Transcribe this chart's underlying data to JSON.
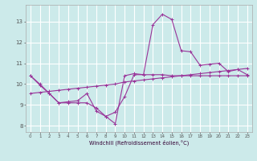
{
  "xlabel": "Windchill (Refroidissement éolien,°C)",
  "background_color": "#cceaea",
  "grid_color": "#ffffff",
  "line_color": "#993399",
  "xlim": [
    -0.5,
    23.5
  ],
  "ylim": [
    7.7,
    13.8
  ],
  "yticks": [
    8,
    9,
    10,
    11,
    12,
    13
  ],
  "xticks": [
    0,
    1,
    2,
    3,
    4,
    5,
    6,
    7,
    8,
    9,
    10,
    11,
    12,
    13,
    14,
    15,
    16,
    17,
    18,
    19,
    20,
    21,
    22,
    23
  ],
  "series1_x": [
    0,
    1,
    2,
    3,
    4,
    5,
    6,
    7,
    8,
    9,
    10,
    11,
    12,
    13,
    14,
    15,
    16,
    17,
    18,
    19,
    20,
    21,
    22,
    23
  ],
  "series1_y": [
    10.4,
    10.0,
    9.55,
    9.1,
    9.1,
    9.1,
    9.1,
    8.85,
    8.45,
    8.1,
    10.4,
    10.5,
    10.45,
    12.85,
    13.35,
    13.1,
    11.6,
    11.55,
    10.9,
    10.95,
    11.0,
    10.6,
    10.7,
    10.45
  ],
  "series2_x": [
    0,
    1,
    2,
    3,
    4,
    5,
    6,
    7,
    8,
    9,
    10,
    11,
    12,
    13,
    14,
    15,
    16,
    17,
    18,
    19,
    20,
    21,
    22,
    23
  ],
  "series2_y": [
    9.55,
    9.6,
    9.65,
    9.7,
    9.75,
    9.8,
    9.85,
    9.9,
    9.95,
    10.0,
    10.1,
    10.15,
    10.2,
    10.25,
    10.3,
    10.35,
    10.4,
    10.45,
    10.5,
    10.55,
    10.6,
    10.65,
    10.7,
    10.75
  ],
  "series3_x": [
    0,
    1,
    2,
    3,
    4,
    5,
    6,
    7,
    8,
    9,
    10,
    11,
    12,
    13,
    14,
    15,
    16,
    17,
    18,
    19,
    20,
    21,
    22,
    23
  ],
  "series3_y": [
    10.4,
    9.95,
    9.55,
    9.1,
    9.15,
    9.2,
    9.55,
    8.7,
    8.45,
    8.65,
    9.4,
    10.45,
    10.45,
    10.45,
    10.45,
    10.4,
    10.4,
    10.4,
    10.4,
    10.4,
    10.4,
    10.4,
    10.4,
    10.4
  ]
}
